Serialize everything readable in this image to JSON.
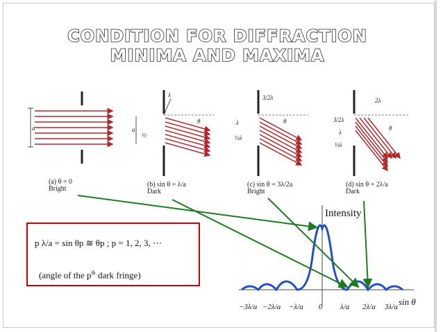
{
  "slide": {
    "title_line1": "CONDITION FOR DIFFRACTION",
    "title_line2": "MINIMA AND MAXIMA"
  },
  "panels": [
    {
      "caption_label": "(a)",
      "caption_math": "θ = 0",
      "caption_state": "Bright"
    },
    {
      "caption_label": "(b)",
      "caption_math": "sin θ = λ/a",
      "caption_state": "Dark"
    },
    {
      "caption_label": "(c)",
      "caption_math": "sin θ = 3λ/2a",
      "caption_state": "Bright"
    },
    {
      "caption_label": "(d)",
      "caption_math": "sin θ = 2λ/a",
      "caption_state": "Dark"
    }
  ],
  "diagram_labels": {
    "slit_width": "a",
    "angle": "θ",
    "lambda": "λ",
    "half": "½",
    "half_lambda": "½λ",
    "three_half_lambda": "3/2λ",
    "two_lambda": "2λ"
  },
  "graph": {
    "ylabel": "Intensity",
    "xlabel": "sin θ",
    "ticks": [
      "−3λ/a",
      "−2λ/a",
      "−λ/a",
      "0",
      "λ/a",
      "2λ/a",
      "3λ/a"
    ],
    "curve_color": "#1f4fc4"
  },
  "equation": {
    "main": "p λ/a = sin θp ≅ θp ;   p = 1, 2, 3, ⋯",
    "note_prefix": "(angle of the p",
    "note_sup": "th",
    "note_suffix": " dark fringe)"
  },
  "colors": {
    "ray": "#b0282c",
    "arrow": "#1e7a1e",
    "box_border": "#c00000"
  }
}
